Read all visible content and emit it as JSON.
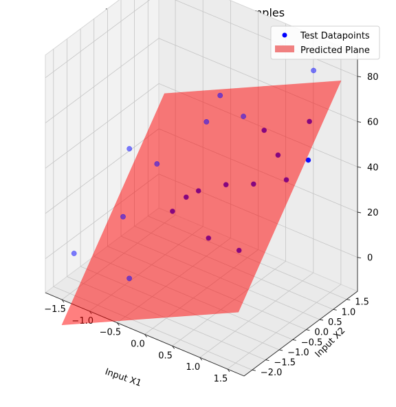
{
  "chart_data": {
    "type": "scatter3d",
    "title": "The Tests Dataset | 100 samples",
    "xlabel": "Input X1",
    "ylabel": "Input X2",
    "zlabel": "",
    "xlim": [
      -1.8,
      1.8
    ],
    "ylim": [
      -2.3,
      1.9
    ],
    "zlim": [
      -15,
      90
    ],
    "xticks": [
      "−1.5",
      "−1.0",
      "−0.5",
      "0.0",
      "0.5",
      "1.0",
      "1.5"
    ],
    "yticks": [
      "−2.0",
      "−1.5",
      "−1.0",
      "−0.5",
      "0.0",
      "0.5",
      "1.0",
      "1.5"
    ],
    "zticks": [
      "0",
      "20",
      "40",
      "60",
      "80"
    ],
    "grid": true,
    "legend": {
      "placement": "top-right",
      "entries": [
        {
          "label": "Test Datapoints",
          "color": "#0000ff",
          "marker": "circle"
        },
        {
          "label": "Predicted Plane",
          "color": "#f08080",
          "marker": "patch"
        }
      ]
    },
    "points_color": "#0000ff",
    "plane_color": "#ff0000",
    "plane": {
      "coef_x1": 12,
      "coef_x2": 18,
      "intercept": 28
    },
    "points": [
      {
        "x1": -1.55,
        "x2": -1.75,
        "z": 0
      },
      {
        "x1": -0.45,
        "x2": -1.95,
        "z": 2
      },
      {
        "x1": -1.2,
        "x2": -0.65,
        "z": 10
      },
      {
        "x1": -0.5,
        "x2": -0.25,
        "z": 16
      },
      {
        "x1": -0.35,
        "x2": -0.05,
        "z": 22
      },
      {
        "x1": -0.2,
        "x2": 0.1,
        "z": 25
      },
      {
        "x1": 0.2,
        "x2": 0.3,
        "z": 30
      },
      {
        "x1": 0.65,
        "x2": 0.4,
        "z": 34
      },
      {
        "x1": 0.3,
        "x2": -0.55,
        "z": 15
      },
      {
        "x1": 0.95,
        "x2": -0.75,
        "z": 18
      },
      {
        "x1": 1.0,
        "x2": 0.9,
        "z": 35
      },
      {
        "x1": 0.8,
        "x2": 1.0,
        "z": 43
      },
      {
        "x1": 0.5,
        "x2": 1.1,
        "z": 50
      },
      {
        "x1": -0.3,
        "x2": 0.6,
        "z": 50
      },
      {
        "x1": 0.15,
        "x2": 1.05,
        "z": 53
      },
      {
        "x1": 1.3,
        "x2": 1.1,
        "z": 45
      },
      {
        "x1": -1.55,
        "x2": 0.3,
        "z": 28
      },
      {
        "x1": -1.1,
        "x2": 0.4,
        "z": 25
      },
      {
        "x1": -0.2,
        "x2": 0.9,
        "z": 60
      },
      {
        "x1": 1.2,
        "x2": 1.5,
        "z": 80
      },
      {
        "x1": 1.1,
        "x2": 1.55,
        "z": 56
      }
    ]
  }
}
